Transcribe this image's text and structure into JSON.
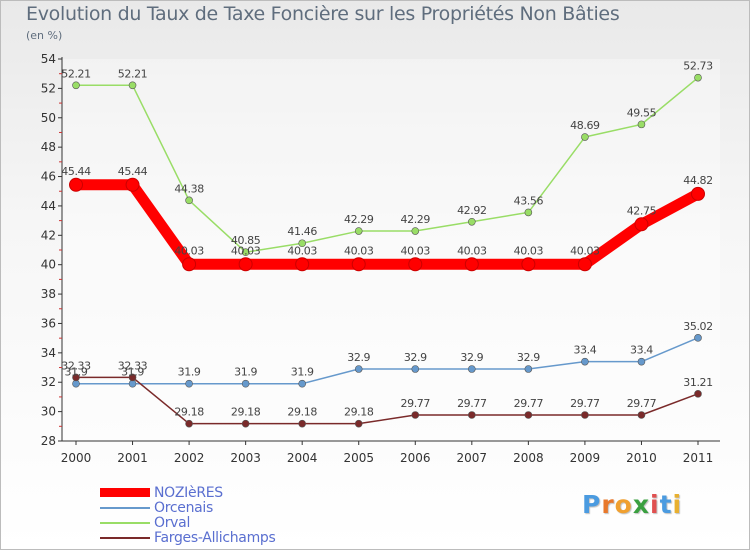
{
  "chart_data": {
    "type": "line",
    "title": "Evolution du Taux de Taxe Foncière sur les Propriétés Non Bâties",
    "ylabel": "(en %)",
    "xlabel": "",
    "categories": [
      "2000",
      "2001",
      "2002",
      "2003",
      "2004",
      "2005",
      "2006",
      "2007",
      "2008",
      "2009",
      "2010",
      "2011"
    ],
    "ylim": [
      28,
      54
    ],
    "yticks": [
      28,
      30,
      32,
      34,
      36,
      38,
      40,
      42,
      44,
      46,
      48,
      50,
      52,
      54
    ],
    "grid": false,
    "legend_position": "bottom-left",
    "series": [
      {
        "name": "NOZIèRES",
        "color": "#ff0000",
        "values": [
          45.44,
          45.44,
          40.03,
          40.03,
          40.03,
          40.03,
          40.03,
          40.03,
          40.03,
          40.03,
          42.75,
          44.82
        ],
        "labels": [
          "45.44",
          "45.44",
          "40.03",
          "40.03",
          "40.03",
          "40.03",
          "40.03",
          "40.03",
          "40.03",
          "40.03",
          "42.75",
          "44.82"
        ]
      },
      {
        "name": "Orcenais",
        "color": "#6699cc",
        "values": [
          31.9,
          31.9,
          31.9,
          31.9,
          31.9,
          32.9,
          32.9,
          32.9,
          32.9,
          33.4,
          33.4,
          35.02
        ],
        "labels": [
          "31.9",
          "31.9",
          "31.9",
          "31.9",
          "31.9",
          "32.9",
          "32.9",
          "32.9",
          "32.9",
          "33.4",
          "33.4",
          "35.02"
        ]
      },
      {
        "name": "Orval",
        "color": "#99dd66",
        "values": [
          52.21,
          52.21,
          44.38,
          40.85,
          41.46,
          42.29,
          42.29,
          42.92,
          43.56,
          48.69,
          49.55,
          52.73
        ],
        "labels": [
          "52.21",
          "52.21",
          "44.38",
          "40.85",
          "41.46",
          "42.29",
          "42.29",
          "42.92",
          "43.56",
          "48.69",
          "49.55",
          "52.73"
        ]
      },
      {
        "name": "Farges-Allichamps",
        "color": "#7a2a2a",
        "values": [
          32.33,
          32.33,
          29.18,
          29.18,
          29.18,
          29.18,
          29.77,
          29.77,
          29.77,
          29.77,
          29.77,
          31.21
        ],
        "labels": [
          "32.33",
          "32.33",
          "29.18",
          "29.18",
          "29.18",
          "29.18",
          "29.77",
          "29.77",
          "29.77",
          "29.77",
          "29.77",
          "31.21"
        ]
      }
    ]
  },
  "logo": {
    "letters": [
      "P",
      "r",
      "o",
      "x",
      "i",
      "t",
      "i"
    ],
    "colors": [
      "#4b9be0",
      "#e8782b",
      "#f0a030",
      "#3aa040",
      "#e05050",
      "#4b9be0",
      "#e8b030"
    ]
  }
}
